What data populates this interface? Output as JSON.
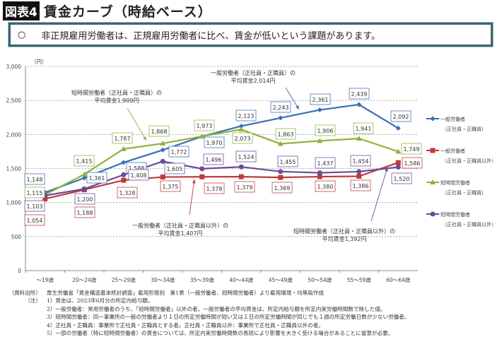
{
  "header": {
    "figure_label": "図表4",
    "title": "賃金カーブ（時給ベース）"
  },
  "summary": {
    "bullet": "○",
    "text": "非正規雇用労働者は、正規雇用労働者に比べ、賃金が低いという課題があります。"
  },
  "chart_data": {
    "type": "line",
    "title": "賃金カーブ（時給ベース）",
    "ylabel": "（円）",
    "xlabel": "",
    "ylim": [
      0,
      3000
    ],
    "yticks": [
      0,
      500,
      1000,
      1500,
      2000,
      2500,
      3000
    ],
    "ytick_labels": [
      "0",
      "500",
      "1,000",
      "1,500",
      "2,000",
      "2,500",
      "3,000"
    ],
    "categories": [
      "～19歳",
      "20～24歳",
      "25～29歳",
      "30～34歳",
      "35～39歳",
      "40～44歳",
      "45～49歳",
      "50～54歳",
      "55～59歳",
      "60～64歳"
    ],
    "grid": true,
    "legend_position": "right",
    "series": [
      {
        "name": "一般労働者",
        "sub": "（正社員・正職員）",
        "color": "#3a6fb5",
        "marker": "diamond",
        "values": [
          1148,
          1361,
          1588,
          1772,
          1970,
          2123,
          2243,
          2361,
          2439,
          2092
        ],
        "labels": [
          "1,148",
          "1,361",
          "1,588",
          "1,772",
          "1,970",
          "2,123",
          "2,243",
          "2,361",
          "2,439",
          "2,092"
        ]
      },
      {
        "name": "一般労働者",
        "sub": "（正社員・正職員以外）",
        "color": "#c0393b",
        "marker": "square",
        "values": [
          1054,
          1188,
          1328,
          1375,
          1378,
          1379,
          1369,
          1380,
          1386,
          1586
        ],
        "labels": [
          "1,054",
          "1,188",
          "1,328",
          "1,375",
          "1,378",
          "1,379",
          "1,369",
          "1,380",
          "1,386",
          "1,586"
        ]
      },
      {
        "name": "短時間労働者",
        "sub": "（正社員・正職員）",
        "color": "#8db33d",
        "marker": "triangle",
        "values": [
          1115,
          1415,
          1787,
          1868,
          1973,
          2073,
          1863,
          1906,
          1941,
          1749
        ],
        "labels": [
          "1,115",
          "1,415",
          "1,787",
          "1,868",
          "1,973",
          "2,073",
          "1,863",
          "1,906",
          "1,941",
          "1,749"
        ]
      },
      {
        "name": "短時間労働者",
        "sub": "（正社員・正職員以外）",
        "color": "#6a4a9c",
        "marker": "circle",
        "values": [
          1103,
          1200,
          1408,
          1605,
          1496,
          1524,
          1455,
          1437,
          1454,
          1520
        ],
        "labels": [
          "1,103",
          "1,200",
          "1,408",
          "1,605",
          "1,496",
          "1,524",
          "1,455",
          "1,437",
          "1,454",
          "1,520"
        ]
      }
    ],
    "annotations": [
      {
        "line1": "一般労働者（正社員・正職員）の",
        "line2": "平均賃金2,014円"
      },
      {
        "line1": "短時間労働者（正社員・正職員）の",
        "line2": "平均賃金1,900円"
      },
      {
        "line1": "一般労働者（正社員・正職員以外）の",
        "line2": "平均賃金1,407円"
      },
      {
        "line1": "短時間労働者（正社員・正職員以外）の",
        "line2": "平均賃金1,392円"
      }
    ]
  },
  "notes": [
    {
      "key": "（資料出所）",
      "text": "厚生労働省「賃金構造基本統計調査」雇用形態別　第1表（一般労働者、短時間労働者）より雇用環境・均等局作成"
    },
    {
      "key": "（注）",
      "text": "1）賃金は、2023年6月分の所定内給与額。"
    },
    {
      "key": "",
      "text": "2）一般労働者：常用労働者のうち、「短時間労働者」以外の者。一般労働者の平均賃金は、所定内給与額を所定内実労働時間数で除した値。"
    },
    {
      "key": "",
      "text": "3）短時間労働者：同一事業所の一般の労働者より１日の所定労働時間が短い又は１日の所定労働時間が同じでも１週の所定労働日数が少ない労働者。"
    },
    {
      "key": "",
      "text": "4）正社員・正職員：事業所で正社員・正職員とする者。正社員・正職員以外：事業所で正社員・正職員以外の者。"
    },
    {
      "key": "",
      "text": "5）一部の労働者（特に短時間労働者）の賃金については、所定内実労働時間数の長短により影響を大きく受ける場合があることに留意が必要。"
    }
  ]
}
